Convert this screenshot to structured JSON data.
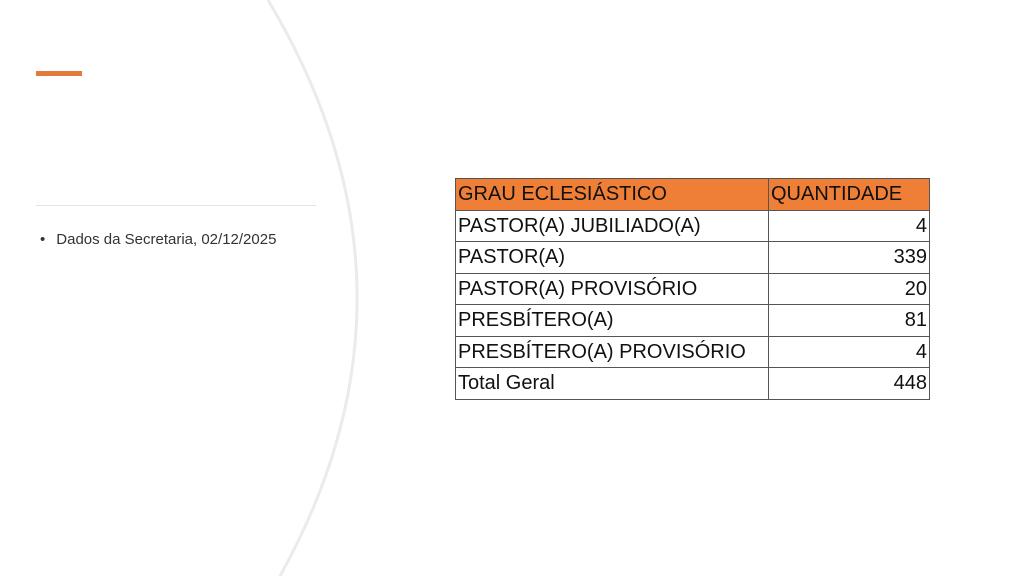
{
  "theme": {
    "accent": "#e07b39",
    "header_fill": "#ef7f36"
  },
  "bullets": [
    "Dados da Secretaria, 02/12/2025"
  ],
  "table": {
    "headers": [
      "GRAU ECLESIÁSTICO",
      "QUANTIDADE"
    ],
    "rows": [
      [
        "PASTOR(A) JUBILIADO(A)",
        "4"
      ],
      [
        "PASTOR(A)",
        "339"
      ],
      [
        "PASTOR(A) PROVISÓRIO",
        "20"
      ],
      [
        "PRESBÍTERO(A)",
        "81"
      ],
      [
        "PRESBÍTERO(A) PROVISÓRIO",
        "4"
      ],
      [
        "Total Geral",
        "448"
      ]
    ]
  }
}
